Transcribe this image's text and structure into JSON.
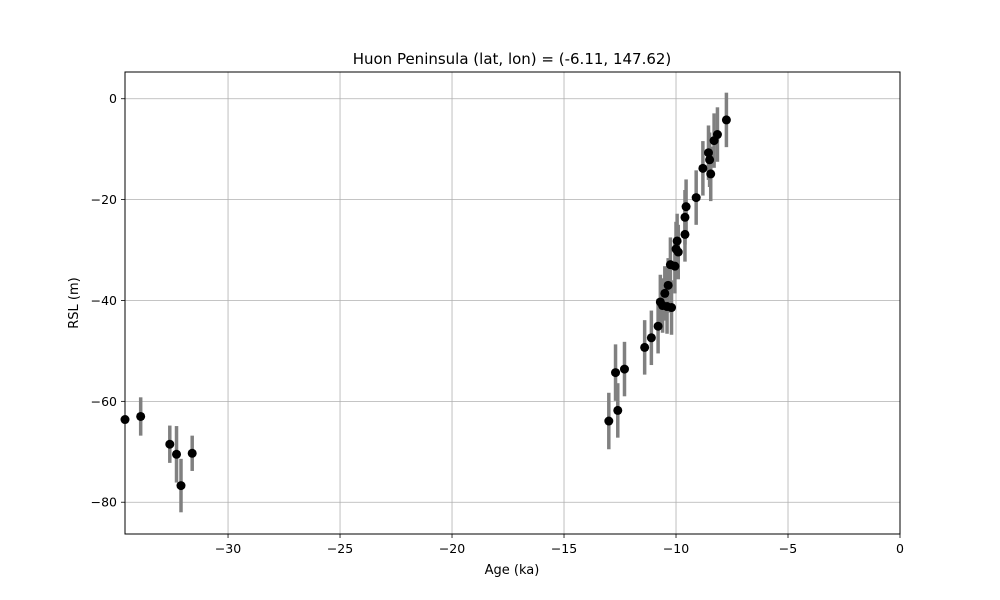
{
  "chart_data": {
    "type": "scatter",
    "title": "Huon Peninsula (lat, lon) = (-6.11, 147.62)",
    "xlabel": "Age (ka)",
    "ylabel": "RSL (m)",
    "xlim": [
      -34.6,
      0
    ],
    "ylim": [
      -86.3,
      5.3
    ],
    "x_ticks": [
      -30,
      -25,
      -20,
      -15,
      -10,
      -5,
      0
    ],
    "y_ticks": [
      0,
      -20,
      -40,
      -60,
      -80
    ],
    "x_tick_labels": [
      "−30",
      "−25",
      "−20",
      "−15",
      "−10",
      "−5",
      "0"
    ],
    "y_tick_labels": [
      "0",
      "−20",
      "−40",
      "−60",
      "−80"
    ],
    "grid": true,
    "colors": {
      "points": "#000000",
      "errorbars": "#808080",
      "grid": "#b0b0b0"
    },
    "points": [
      {
        "x": -34.6,
        "y": -63.6,
        "err": 0
      },
      {
        "x": -33.9,
        "y": -63.0,
        "err": 3.8
      },
      {
        "x": -32.6,
        "y": -68.5,
        "err": 3.7
      },
      {
        "x": -32.3,
        "y": -70.5,
        "err": 5.6
      },
      {
        "x": -32.1,
        "y": -76.7,
        "err": 5.3
      },
      {
        "x": -31.6,
        "y": -70.3,
        "err": 3.5
      },
      {
        "x": -13.0,
        "y": -63.9,
        "err": 5.6
      },
      {
        "x": -12.7,
        "y": -54.3,
        "err": 5.6
      },
      {
        "x": -12.6,
        "y": -61.8,
        "err": 5.4
      },
      {
        "x": -12.3,
        "y": -53.6,
        "err": 5.4
      },
      {
        "x": -11.4,
        "y": -49.3,
        "err": 5.4
      },
      {
        "x": -11.1,
        "y": -47.4,
        "err": 5.4
      },
      {
        "x": -10.8,
        "y": -45.1,
        "err": 5.4
      },
      {
        "x": -10.7,
        "y": -40.3,
        "err": 5.4
      },
      {
        "x": -10.6,
        "y": -41.0,
        "err": 5.4
      },
      {
        "x": -10.5,
        "y": -38.6,
        "err": 5.4
      },
      {
        "x": -10.4,
        "y": -41.2,
        "err": 5.4
      },
      {
        "x": -10.35,
        "y": -37.0,
        "err": 5.4
      },
      {
        "x": -10.2,
        "y": -41.4,
        "err": 5.4
      },
      {
        "x": -10.25,
        "y": -32.9,
        "err": 5.4
      },
      {
        "x": -10.05,
        "y": -33.2,
        "err": 5.4
      },
      {
        "x": -10.0,
        "y": -29.8,
        "err": 5.4
      },
      {
        "x": -9.95,
        "y": -28.2,
        "err": 5.4
      },
      {
        "x": -9.9,
        "y": -30.4,
        "err": 5.4
      },
      {
        "x": -9.6,
        "y": -26.9,
        "err": 5.4
      },
      {
        "x": -9.6,
        "y": -23.5,
        "err": 5.4
      },
      {
        "x": -9.55,
        "y": -21.4,
        "err": 5.4
      },
      {
        "x": -9.1,
        "y": -19.6,
        "err": 5.4
      },
      {
        "x": -8.8,
        "y": -13.8,
        "err": 5.4
      },
      {
        "x": -8.55,
        "y": -10.7,
        "err": 5.4
      },
      {
        "x": -8.5,
        "y": -12.1,
        "err": 5.4
      },
      {
        "x": -8.45,
        "y": -14.9,
        "err": 5.4
      },
      {
        "x": -8.3,
        "y": -8.3,
        "err": 5.4
      },
      {
        "x": -8.15,
        "y": -7.1,
        "err": 5.4
      },
      {
        "x": -7.75,
        "y": -4.2,
        "err": 5.4
      }
    ]
  }
}
